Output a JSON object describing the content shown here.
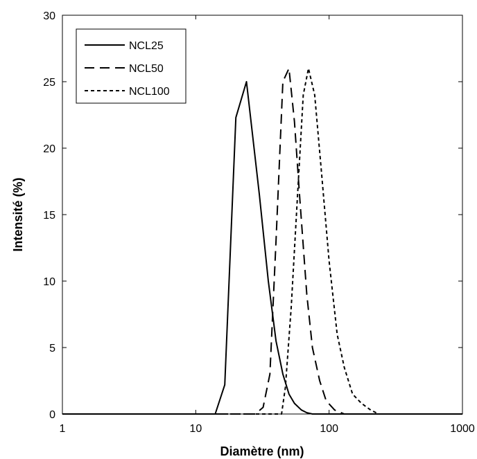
{
  "chart_data": {
    "type": "line",
    "title": "",
    "xlabel": "Diamètre  (nm)",
    "ylabel": "Intensité (%)",
    "xscale": "log",
    "xlim": [
      1,
      1000
    ],
    "ylim": [
      0,
      30
    ],
    "xticks": [
      1,
      10,
      100,
      1000
    ],
    "xtick_labels": [
      "1",
      "10",
      "100",
      "1000"
    ],
    "yticks": [
      0,
      5,
      10,
      15,
      20,
      25,
      30
    ],
    "ytick_labels": [
      "0",
      "5",
      "10",
      "15",
      "20",
      "25",
      "30"
    ],
    "grid": false,
    "legend_position": "top-left",
    "series": [
      {
        "name": "NCL25",
        "style": "solid",
        "x": [
          1,
          14,
          16.5,
          20,
          24,
          30,
          35,
          40,
          45,
          50,
          55,
          62,
          68,
          75,
          1000
        ],
        "y": [
          0,
          0,
          2.2,
          22.3,
          25,
          16.5,
          10,
          5.5,
          3,
          1.5,
          0.8,
          0.3,
          0.1,
          0,
          0
        ]
      },
      {
        "name": "NCL50",
        "style": "dashed",
        "x": [
          1,
          28,
          32,
          36,
          40,
          45,
          50,
          55,
          60,
          68,
          75,
          85,
          95,
          110,
          130,
          1000
        ],
        "y": [
          0,
          0,
          0.5,
          3,
          13,
          25,
          26,
          22,
          16.5,
          9,
          5,
          2.5,
          1,
          0.3,
          0,
          0
        ]
      },
      {
        "name": "NCL100",
        "style": "dotted",
        "x": [
          1,
          44,
          47,
          52,
          58,
          64,
          70,
          78,
          88,
          100,
          115,
          130,
          150,
          175,
          205,
          235,
          1000
        ],
        "y": [
          0,
          0,
          2,
          8,
          16.5,
          24,
          26,
          24,
          18,
          11.5,
          6,
          3.5,
          1.5,
          0.8,
          0.3,
          0,
          0
        ]
      }
    ]
  }
}
